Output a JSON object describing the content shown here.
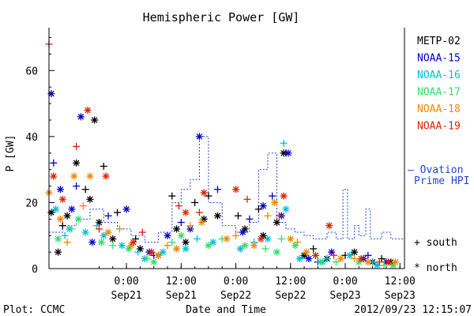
{
  "chart_data": {
    "type": "scatter",
    "title": "Hemispheric Power [GW]",
    "ylabel": "P [GW]",
    "xlabel": "Date and Time",
    "ylim": [
      0,
      73
    ],
    "yticks": [
      0,
      20,
      40,
      60
    ],
    "xlim": [
      "2012-09-20 07:00",
      "2012-09-23 13:00"
    ],
    "xticks": [
      {
        "t": "2012-09-21 00:00",
        "line1": "0:00",
        "line2": "Sep21"
      },
      {
        "t": "2012-09-21 12:00",
        "line1": "12:00",
        "line2": "Sep21"
      },
      {
        "t": "2012-09-22 00:00",
        "line1": "0:00",
        "line2": "Sep22"
      },
      {
        "t": "2012-09-22 12:00",
        "line1": "12:00",
        "line2": "Sep22"
      },
      {
        "t": "2012-09-23 00:00",
        "line1": "0:00",
        "line2": "Sep23"
      },
      {
        "t": "2012-09-23 12:00",
        "line1": "12:00",
        "line2": "Sep23"
      }
    ],
    "series": [
      {
        "name": "METP-02",
        "color": "#000000",
        "points": [
          [
            "2012-09-20 07:30",
            17,
            "north"
          ],
          [
            "2012-09-20 09:00",
            5,
            "north"
          ],
          [
            "2012-09-20 11:00",
            16,
            "north"
          ],
          [
            "2012-09-20 13:00",
            32,
            "north"
          ],
          [
            "2012-09-20 16:00",
            21,
            "north"
          ],
          [
            "2012-09-20 17:00",
            45,
            "north"
          ],
          [
            "2012-09-20 18:00",
            14,
            "north"
          ],
          [
            "2012-09-20 21:00",
            9,
            "north"
          ],
          [
            "2012-09-21 03:00",
            6,
            "north"
          ],
          [
            "2012-09-21 07:00",
            4,
            "north"
          ],
          [
            "2012-09-21 11:00",
            12,
            "north"
          ],
          [
            "2012-09-21 13:00",
            8,
            "north"
          ],
          [
            "2012-09-21 17:00",
            15,
            "north"
          ],
          [
            "2012-09-21 20:00",
            16,
            "north"
          ],
          [
            "2012-09-22 02:00",
            12,
            "north"
          ],
          [
            "2012-09-22 06:00",
            10,
            "north"
          ],
          [
            "2012-09-22 09:00",
            14,
            "north"
          ],
          [
            "2012-09-22 10:30",
            35,
            "north"
          ],
          [
            "2012-09-22 15:00",
            4,
            "north"
          ],
          [
            "2012-09-22 20:00",
            3,
            "north"
          ],
          [
            "2012-09-23 02:00",
            5,
            "north"
          ],
          [
            "2012-09-23 06:00",
            2,
            "north"
          ],
          [
            "2012-09-23 10:00",
            2,
            "north"
          ],
          [
            "2012-09-20 10:00",
            13,
            "south"
          ],
          [
            "2012-09-20 15:00",
            24,
            "south"
          ],
          [
            "2012-09-20 19:00",
            31,
            "south"
          ],
          [
            "2012-09-20 22:00",
            17,
            "south"
          ],
          [
            "2012-09-21 02:00",
            9,
            "south"
          ],
          [
            "2012-09-21 10:00",
            22,
            "south"
          ],
          [
            "2012-09-21 15:00",
            20,
            "south"
          ],
          [
            "2012-09-21 18:00",
            22,
            "south"
          ],
          [
            "2012-09-22 00:30",
            16,
            "south"
          ],
          [
            "2012-09-22 05:00",
            18,
            "south"
          ],
          [
            "2012-09-22 11:00",
            35,
            "south"
          ],
          [
            "2012-09-22 17:00",
            6,
            "south"
          ],
          [
            "2012-09-23 00:00",
            4,
            "south"
          ],
          [
            "2012-09-23 08:00",
            3,
            "south"
          ]
        ]
      },
      {
        "name": "NOAA-15",
        "color": "#0000cc",
        "points": [
          [
            "2012-09-20 07:30",
            53,
            "north"
          ],
          [
            "2012-09-20 09:30",
            24,
            "north"
          ],
          [
            "2012-09-20 12:00",
            18,
            "north"
          ],
          [
            "2012-09-20 14:00",
            46,
            "north"
          ],
          [
            "2012-09-20 16:30",
            8,
            "north"
          ],
          [
            "2012-09-21 00:00",
            18,
            "north"
          ],
          [
            "2012-09-21 05:00",
            5,
            "north"
          ],
          [
            "2012-09-21 09:00",
            10,
            "north"
          ],
          [
            "2012-09-21 14:00",
            12,
            "north"
          ],
          [
            "2012-09-21 16:00",
            40,
            "north"
          ],
          [
            "2012-09-22 01:30",
            11,
            "north"
          ],
          [
            "2012-09-22 06:00",
            19,
            "north"
          ],
          [
            "2012-09-22 10:00",
            16,
            "north"
          ],
          [
            "2012-09-22 11:30",
            35,
            "north"
          ],
          [
            "2012-09-22 16:00",
            3,
            "north"
          ],
          [
            "2012-09-22 21:00",
            5,
            "north"
          ],
          [
            "2012-09-23 04:00",
            3,
            "north"
          ],
          [
            "2012-09-23 09:00",
            2,
            "north"
          ],
          [
            "2012-09-20 08:00",
            32,
            "south"
          ],
          [
            "2012-09-20 13:00",
            25,
            "south"
          ],
          [
            "2012-09-20 20:00",
            16,
            "south"
          ],
          [
            "2012-09-21 06:00",
            4,
            "south"
          ],
          [
            "2012-09-21 12:00",
            14,
            "south"
          ],
          [
            "2012-09-21 20:00",
            24,
            "south"
          ],
          [
            "2012-09-22 03:00",
            15,
            "south"
          ],
          [
            "2012-09-22 08:00",
            22,
            "south"
          ],
          [
            "2012-09-22 18:00",
            2,
            "south"
          ],
          [
            "2012-09-23 05:00",
            4,
            "south"
          ]
        ]
      },
      {
        "name": "NOAA-16",
        "color": "#00bfd8",
        "points": [
          [
            "2012-09-20 08:30",
            18,
            "north"
          ],
          [
            "2012-09-20 11:30",
            12,
            "north"
          ],
          [
            "2012-09-20 15:00",
            11,
            "north"
          ],
          [
            "2012-09-20 19:00",
            10,
            "north"
          ],
          [
            "2012-09-20 23:00",
            7,
            "north"
          ],
          [
            "2012-09-21 04:00",
            3,
            "north"
          ],
          [
            "2012-09-21 08:00",
            5,
            "north"
          ],
          [
            "2012-09-21 13:00",
            6,
            "north"
          ],
          [
            "2012-09-21 19:00",
            8,
            "north"
          ],
          [
            "2012-09-22 01:00",
            6,
            "north"
          ],
          [
            "2012-09-22 07:00",
            9,
            "north"
          ],
          [
            "2012-09-22 11:00",
            18,
            "north"
          ],
          [
            "2012-09-22 14:00",
            3,
            "north"
          ],
          [
            "2012-09-22 19:00",
            2,
            "north"
          ],
          [
            "2012-09-23 01:00",
            4,
            "north"
          ],
          [
            "2012-09-23 07:00",
            1,
            "north"
          ],
          [
            "2012-09-20 10:30",
            10,
            "south"
          ],
          [
            "2012-09-20 17:30",
            13,
            "south"
          ],
          [
            "2012-09-21 02:30",
            5,
            "south"
          ],
          [
            "2012-09-21 15:30",
            9,
            "south"
          ],
          [
            "2012-09-22 04:00",
            8,
            "south"
          ],
          [
            "2012-09-22 10:30",
            38,
            "south"
          ],
          [
            "2012-09-22 20:00",
            3,
            "south"
          ],
          [
            "2012-09-23 06:00",
            2,
            "south"
          ]
        ]
      },
      {
        "name": "NOAA-17",
        "color": "#33dd66",
        "points": [
          [
            "2012-09-20 09:00",
            9,
            "north"
          ],
          [
            "2012-09-20 13:30",
            15,
            "north"
          ],
          [
            "2012-09-20 18:30",
            8,
            "north"
          ],
          [
            "2012-09-21 00:30",
            6,
            "north"
          ],
          [
            "2012-09-21 06:00",
            2,
            "north"
          ],
          [
            "2012-09-21 12:00",
            10,
            "north"
          ],
          [
            "2012-09-21 18:00",
            7,
            "north"
          ],
          [
            "2012-09-22 02:00",
            7,
            "north"
          ],
          [
            "2012-09-22 09:00",
            5,
            "north"
          ],
          [
            "2012-09-22 13:00",
            7,
            "north"
          ],
          [
            "2012-09-22 18:30",
            2,
            "north"
          ],
          [
            "2012-09-23 03:00",
            2,
            "north"
          ],
          [
            "2012-09-23 10:30",
            1,
            "north"
          ],
          [
            "2012-09-20 12:00",
            12,
            "south"
          ],
          [
            "2012-09-20 21:00",
            7,
            "south"
          ],
          [
            "2012-09-21 04:30",
            3,
            "south"
          ],
          [
            "2012-09-21 10:00",
            8,
            "south"
          ],
          [
            "2012-09-21 21:00",
            9,
            "south"
          ],
          [
            "2012-09-22 06:30",
            6,
            "south"
          ],
          [
            "2012-09-22 10:00",
            9,
            "south"
          ],
          [
            "2012-09-22 22:00",
            2,
            "south"
          ],
          [
            "2012-09-23 08:30",
            1,
            "south"
          ]
        ]
      },
      {
        "name": "NOAA-18",
        "color": "#ee8800",
        "points": [
          [
            "2012-09-20 07:00",
            23,
            "north"
          ],
          [
            "2012-09-20 09:30",
            15,
            "north"
          ],
          [
            "2012-09-20 12:30",
            28,
            "north"
          ],
          [
            "2012-09-20 16:00",
            28,
            "north"
          ],
          [
            "2012-09-20 20:00",
            11,
            "north"
          ],
          [
            "2012-09-21 01:00",
            7,
            "north"
          ],
          [
            "2012-09-21 07:00",
            4,
            "north"
          ],
          [
            "2012-09-21 11:00",
            6,
            "north"
          ],
          [
            "2012-09-21 16:30",
            14,
            "north"
          ],
          [
            "2012-09-21 22:00",
            9,
            "north"
          ],
          [
            "2012-09-22 04:00",
            7,
            "north"
          ],
          [
            "2012-09-22 08:30",
            20,
            "north"
          ],
          [
            "2012-09-22 12:00",
            9,
            "north"
          ],
          [
            "2012-09-22 15:30",
            5,
            "north"
          ],
          [
            "2012-09-22 23:00",
            3,
            "north"
          ],
          [
            "2012-09-23 05:00",
            2,
            "north"
          ],
          [
            "2012-09-23 11:00",
            2,
            "north"
          ],
          [
            "2012-09-20 11:00",
            8,
            "south"
          ],
          [
            "2012-09-20 14:30",
            19,
            "south"
          ],
          [
            "2012-09-20 22:30",
            12,
            "south"
          ],
          [
            "2012-09-21 09:00",
            7,
            "south"
          ],
          [
            "2012-09-21 14:00",
            13,
            "south"
          ],
          [
            "2012-09-22 00:00",
            10,
            "south"
          ],
          [
            "2012-09-22 07:00",
            16,
            "south"
          ],
          [
            "2012-09-22 13:30",
            8,
            "south"
          ],
          [
            "2012-09-23 02:00",
            3,
            "south"
          ]
        ]
      },
      {
        "name": "NOAA-19",
        "color": "#dd2200",
        "points": [
          [
            "2012-09-20 07:00",
            68,
            "south"
          ],
          [
            "2012-09-20 08:00",
            28,
            "north"
          ],
          [
            "2012-09-20 10:00",
            21,
            "north"
          ],
          [
            "2012-09-20 15:30",
            48,
            "north"
          ],
          [
            "2012-09-20 19:30",
            28,
            "north"
          ],
          [
            "2012-09-21 01:30",
            8,
            "north"
          ],
          [
            "2012-09-21 05:30",
            5,
            "north"
          ],
          [
            "2012-09-21 13:00",
            17,
            "north"
          ],
          [
            "2012-09-21 17:00",
            23,
            "north"
          ],
          [
            "2012-09-22 00:00",
            24,
            "north"
          ],
          [
            "2012-09-22 05:30",
            9,
            "north"
          ],
          [
            "2012-09-22 10:30",
            22,
            "north"
          ],
          [
            "2012-09-22 17:30",
            4,
            "north"
          ],
          [
            "2012-09-22 20:30",
            13,
            "north"
          ],
          [
            "2012-09-23 03:30",
            3,
            "north"
          ],
          [
            "2012-09-23 09:30",
            2,
            "north"
          ],
          [
            "2012-09-20 13:00",
            37,
            "south"
          ],
          [
            "2012-09-20 18:00",
            12,
            "south"
          ],
          [
            "2012-09-21 03:30",
            11,
            "south"
          ],
          [
            "2012-09-21 11:30",
            19,
            "south"
          ],
          [
            "2012-09-21 16:00",
            17,
            "south"
          ],
          [
            "2012-09-22 02:30",
            21,
            "south"
          ],
          [
            "2012-09-22 09:30",
            16,
            "south"
          ],
          [
            "2012-09-22 21:30",
            4,
            "south"
          ],
          [
            "2012-09-23 07:30",
            2,
            "south"
          ]
        ]
      }
    ],
    "ovation": {
      "name": "Ovation Prime HPI",
      "color": "#2244dd",
      "steps": [
        [
          "2012-09-20 07:00",
          11
        ],
        [
          "2012-09-20 10:00",
          13
        ],
        [
          "2012-09-20 13:00",
          15
        ],
        [
          "2012-09-20 16:00",
          18
        ],
        [
          "2012-09-20 19:00",
          14
        ],
        [
          "2012-09-20 22:00",
          12
        ],
        [
          "2012-09-21 01:00",
          10
        ],
        [
          "2012-09-21 04:00",
          8
        ],
        [
          "2012-09-21 07:00",
          11
        ],
        [
          "2012-09-21 10:00",
          20
        ],
        [
          "2012-09-21 12:00",
          24
        ],
        [
          "2012-09-21 14:00",
          27
        ],
        [
          "2012-09-21 16:00",
          40
        ],
        [
          "2012-09-21 18:00",
          20
        ],
        [
          "2012-09-21 21:00",
          13
        ],
        [
          "2012-09-22 00:00",
          11
        ],
        [
          "2012-09-22 03:00",
          14
        ],
        [
          "2012-09-22 05:00",
          30
        ],
        [
          "2012-09-22 07:00",
          35
        ],
        [
          "2012-09-22 09:00",
          14
        ],
        [
          "2012-09-22 11:00",
          12
        ],
        [
          "2012-09-22 13:00",
          11
        ],
        [
          "2012-09-22 15:00",
          10
        ],
        [
          "2012-09-22 17:00",
          9
        ],
        [
          "2012-09-22 20:00",
          11
        ],
        [
          "2012-09-22 22:00",
          9
        ],
        [
          "2012-09-22 23:30",
          24
        ],
        [
          "2012-09-23 00:30",
          9
        ],
        [
          "2012-09-23 02:00",
          13
        ],
        [
          "2012-09-23 03:00",
          10
        ],
        [
          "2012-09-23 04:30",
          18
        ],
        [
          "2012-09-23 05:30",
          9
        ],
        [
          "2012-09-23 08:00",
          11
        ],
        [
          "2012-09-23 10:00",
          9
        ],
        [
          "2012-09-23 13:00",
          9
        ]
      ]
    },
    "legend": {
      "items": [
        "METP-02",
        "NOAA-15",
        "NOAA-16",
        "NOAA-17",
        "NOAA-18",
        "NOAA-19"
      ],
      "ovation_line1": "— Ovation",
      "ovation_line2": "Prime HPI",
      "south_label": "+ south",
      "north_label": "* north",
      "placement": "right"
    },
    "footer": {
      "plot_label": "Plot: CCMC",
      "timestamp": "2012/09/23 12:15:07"
    }
  }
}
